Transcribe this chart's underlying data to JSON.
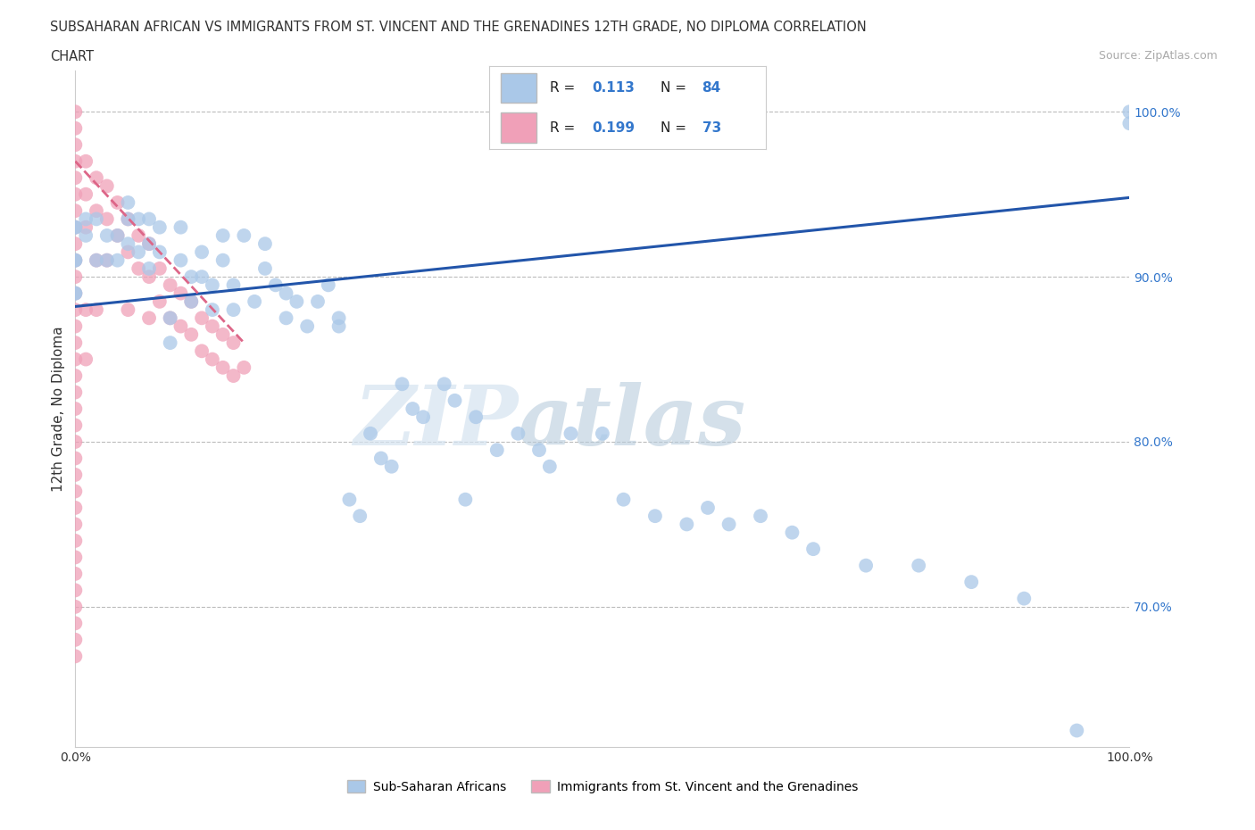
{
  "title_line1": "SUBSAHARAN AFRICAN VS IMMIGRANTS FROM ST. VINCENT AND THE GRENADINES 12TH GRADE, NO DIPLOMA CORRELATION",
  "title_line2": "CHART",
  "source_text": "Source: ZipAtlas.com",
  "ylabel": "12th Grade, No Diploma",
  "xmin": 0.0,
  "xmax": 1.0,
  "ymin": 0.615,
  "ymax": 1.025,
  "xtick_positions": [
    0.0,
    1.0
  ],
  "xtick_labels": [
    "0.0%",
    "100.0%"
  ],
  "ytick_values": [
    0.7,
    0.8,
    0.9,
    1.0
  ],
  "ytick_labels": [
    "70.0%",
    "80.0%",
    "90.0%",
    "100.0%"
  ],
  "blue_R": 0.113,
  "blue_N": 84,
  "pink_R": 0.199,
  "pink_N": 73,
  "blue_color": "#aac8e8",
  "pink_color": "#f0a0b8",
  "blue_line_color": "#2255aa",
  "pink_line_color": "#dd6688",
  "blue_scatter_x": [
    0.0,
    0.0,
    0.0,
    0.0,
    0.0,
    0.0,
    0.01,
    0.01,
    0.02,
    0.02,
    0.03,
    0.03,
    0.04,
    0.04,
    0.05,
    0.05,
    0.05,
    0.06,
    0.06,
    0.07,
    0.07,
    0.07,
    0.08,
    0.08,
    0.09,
    0.09,
    0.1,
    0.1,
    0.11,
    0.11,
    0.12,
    0.12,
    0.13,
    0.13,
    0.14,
    0.14,
    0.15,
    0.15,
    0.16,
    0.17,
    0.18,
    0.18,
    0.19,
    0.2,
    0.2,
    0.21,
    0.22,
    0.23,
    0.24,
    0.25,
    0.25,
    0.26,
    0.27,
    0.28,
    0.29,
    0.3,
    0.31,
    0.32,
    0.33,
    0.35,
    0.36,
    0.37,
    0.38,
    0.4,
    0.42,
    0.44,
    0.45,
    0.47,
    0.5,
    0.52,
    0.55,
    0.58,
    0.6,
    0.62,
    0.65,
    0.68,
    0.7,
    0.75,
    0.8,
    0.85,
    0.9,
    0.95,
    1.0,
    1.0
  ],
  "blue_scatter_y": [
    0.93,
    0.91,
    0.89,
    0.93,
    0.91,
    0.89,
    0.935,
    0.925,
    0.935,
    0.91,
    0.925,
    0.91,
    0.925,
    0.91,
    0.945,
    0.935,
    0.92,
    0.935,
    0.915,
    0.935,
    0.92,
    0.905,
    0.93,
    0.915,
    0.875,
    0.86,
    0.93,
    0.91,
    0.9,
    0.885,
    0.915,
    0.9,
    0.895,
    0.88,
    0.925,
    0.91,
    0.895,
    0.88,
    0.925,
    0.885,
    0.92,
    0.905,
    0.895,
    0.89,
    0.875,
    0.885,
    0.87,
    0.885,
    0.895,
    0.875,
    0.87,
    0.765,
    0.755,
    0.805,
    0.79,
    0.785,
    0.835,
    0.82,
    0.815,
    0.835,
    0.825,
    0.765,
    0.815,
    0.795,
    0.805,
    0.795,
    0.785,
    0.805,
    0.805,
    0.765,
    0.755,
    0.75,
    0.76,
    0.75,
    0.755,
    0.745,
    0.735,
    0.725,
    0.725,
    0.715,
    0.705,
    0.625,
    1.0,
    0.993
  ],
  "pink_scatter_x": [
    0.0,
    0.0,
    0.0,
    0.0,
    0.0,
    0.0,
    0.0,
    0.0,
    0.0,
    0.0,
    0.0,
    0.0,
    0.0,
    0.0,
    0.0,
    0.0,
    0.0,
    0.0,
    0.0,
    0.0,
    0.0,
    0.0,
    0.0,
    0.0,
    0.0,
    0.0,
    0.0,
    0.0,
    0.0,
    0.0,
    0.0,
    0.0,
    0.0,
    0.0,
    0.01,
    0.01,
    0.01,
    0.01,
    0.01,
    0.02,
    0.02,
    0.02,
    0.02,
    0.03,
    0.03,
    0.03,
    0.04,
    0.04,
    0.05,
    0.05,
    0.05,
    0.06,
    0.06,
    0.07,
    0.07,
    0.07,
    0.08,
    0.08,
    0.09,
    0.09,
    0.1,
    0.1,
    0.11,
    0.11,
    0.12,
    0.12,
    0.13,
    0.13,
    0.14,
    0.14,
    0.15,
    0.15,
    0.16
  ],
  "pink_scatter_y": [
    1.0,
    0.99,
    0.98,
    0.97,
    0.96,
    0.95,
    0.94,
    0.93,
    0.92,
    0.91,
    0.9,
    0.89,
    0.88,
    0.87,
    0.86,
    0.85,
    0.84,
    0.83,
    0.82,
    0.81,
    0.8,
    0.79,
    0.78,
    0.77,
    0.76,
    0.75,
    0.74,
    0.73,
    0.72,
    0.71,
    0.7,
    0.69,
    0.68,
    0.67,
    0.97,
    0.95,
    0.93,
    0.88,
    0.85,
    0.96,
    0.94,
    0.91,
    0.88,
    0.955,
    0.935,
    0.91,
    0.945,
    0.925,
    0.935,
    0.915,
    0.88,
    0.925,
    0.905,
    0.92,
    0.9,
    0.875,
    0.905,
    0.885,
    0.895,
    0.875,
    0.89,
    0.87,
    0.885,
    0.865,
    0.875,
    0.855,
    0.87,
    0.85,
    0.865,
    0.845,
    0.86,
    0.84,
    0.845
  ],
  "watermark_zip": "ZIP",
  "watermark_atlas": "atlas",
  "blue_trend_x0": 0.0,
  "blue_trend_x1": 1.0,
  "blue_trend_y0": 0.882,
  "blue_trend_y1": 0.948,
  "pink_trend_x0": 0.0,
  "pink_trend_x1": 0.16,
  "pink_trend_y0": 0.97,
  "pink_trend_y1": 0.86
}
